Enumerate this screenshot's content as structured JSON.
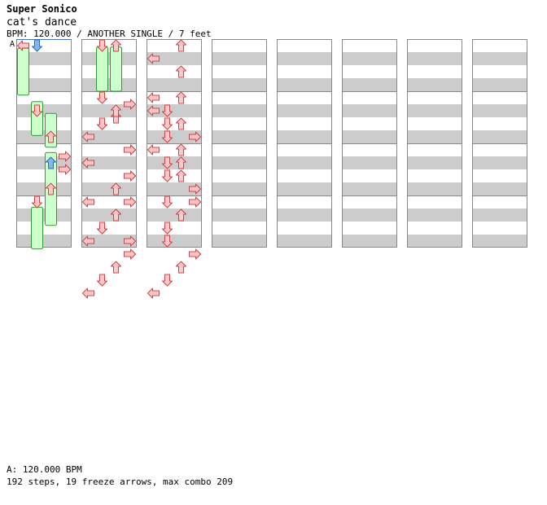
{
  "header": {
    "artist": "Super Sonico",
    "title": "cat's dance",
    "info": "BPM: 120.000 / ANOTHER SINGLE / 7 feet"
  },
  "section_marker": "A",
  "footer": {
    "bpm_line": "A: 120.000 BPM",
    "stats_line": "192 steps, 19 freeze arrows, max combo 209"
  },
  "colors": {
    "stripe": "#cccccc",
    "border": "#888888",
    "arrow_red_fill": "#ffc8c8",
    "arrow_red_stroke": "#cc4444",
    "arrow_blue_fill": "#7fb8f0",
    "arrow_blue_stroke": "#3366aa",
    "arrow_pink_fill": "#ff99ff",
    "arrow_pink_stroke": "#aa44aa",
    "freeze_fill": "#ccffcc",
    "freeze_stroke": "#339933"
  },
  "chart_data": {
    "type": "step-chart",
    "panels": 8,
    "measures_per_panel": 4,
    "beats_per_measure": 4,
    "lanes": [
      "left",
      "down",
      "up",
      "right"
    ],
    "notes": [
      {
        "m": 0,
        "b": 0,
        "lane": "left",
        "c": "red"
      },
      {
        "m": 0,
        "b": 0,
        "lane": "down",
        "c": "blue"
      },
      {
        "m": 1,
        "b": 1,
        "lane": "down",
        "c": "red"
      },
      {
        "m": 1,
        "b": 3,
        "lane": "up",
        "c": "red"
      },
      {
        "m": 1,
        "b": 4.5,
        "lane": "right",
        "c": "red"
      },
      {
        "m": 1,
        "b": 5,
        "lane": "up",
        "c": "blue"
      },
      {
        "m": 1,
        "b": 5.5,
        "lane": "right",
        "c": "red"
      },
      {
        "m": 1,
        "b": 7,
        "lane": "up",
        "c": "red"
      },
      {
        "m": 1,
        "b": 8,
        "lane": "down",
        "c": "red"
      },
      {
        "m": 4,
        "b": 0,
        "lane": "down",
        "c": "red"
      },
      {
        "m": 4,
        "b": 0,
        "lane": "up",
        "c": "red"
      },
      {
        "m": 4,
        "b": 4.5,
        "lane": "right",
        "c": "red"
      },
      {
        "m": 4,
        "b": 5.5,
        "lane": "up",
        "c": "red"
      },
      {
        "m": 4,
        "b": 6,
        "lane": "down",
        "c": "red"
      },
      {
        "m": 4,
        "b": 7,
        "lane": "left",
        "c": "red"
      },
      {
        "m": 4,
        "b": 8,
        "lane": "right",
        "c": "red"
      },
      {
        "m": 4,
        "b": 9,
        "lane": "left",
        "c": "red"
      },
      {
        "m": 4,
        "b": 10,
        "lane": "right",
        "c": "red"
      },
      {
        "m": 4,
        "b": 12,
        "lane": "left",
        "c": "red"
      },
      {
        "m": 4,
        "b": 13,
        "lane": "up",
        "c": "red"
      },
      {
        "m": 4,
        "b": 14,
        "lane": "down",
        "c": "red"
      },
      {
        "m": 4,
        "b": 15,
        "lane": "right",
        "c": "red"
      },
      {
        "m": 5,
        "b": 0,
        "lane": "down",
        "c": "red"
      },
      {
        "m": 5,
        "b": 1,
        "lane": "up",
        "c": "red"
      },
      {
        "m": 5,
        "b": 2,
        "lane": "down",
        "c": "red"
      },
      {
        "m": 5,
        "b": 4,
        "lane": "right",
        "c": "red"
      },
      {
        "m": 5,
        "b": 5,
        "lane": "left",
        "c": "red"
      },
      {
        "m": 5,
        "b": 6,
        "lane": "right",
        "c": "red"
      },
      {
        "m": 5,
        "b": 7,
        "lane": "up",
        "c": "red"
      },
      {
        "m": 5,
        "b": 8,
        "lane": "right",
        "c": "red"
      },
      {
        "m": 5,
        "b": 9,
        "lane": "up",
        "c": "red"
      },
      {
        "m": 5,
        "b": 10,
        "lane": "down",
        "c": "red"
      },
      {
        "m": 5,
        "b": 11,
        "lane": "left",
        "c": "red"
      },
      {
        "m": 5,
        "b": 12,
        "lane": "right",
        "c": "red"
      },
      {
        "m": 5,
        "b": 13,
        "lane": "up",
        "c": "red"
      },
      {
        "m": 5,
        "b": 14,
        "lane": "down",
        "c": "red"
      },
      {
        "m": 5,
        "b": 15,
        "lane": "left",
        "c": "red"
      },
      {
        "m": 8,
        "b": 0,
        "lane": "up",
        "c": "red"
      },
      {
        "m": 8,
        "b": 1,
        "lane": "left",
        "c": "red"
      },
      {
        "m": 8,
        "b": 2,
        "lane": "up",
        "c": "red"
      },
      {
        "m": 8,
        "b": 4,
        "lane": "left",
        "c": "red"
      },
      {
        "m": 8,
        "b": 5,
        "lane": "down",
        "c": "red"
      },
      {
        "m": 8,
        "b": 6,
        "lane": "up",
        "c": "red"
      },
      {
        "m": 8,
        "b": 7,
        "lane": "down",
        "c": "red"
      },
      {
        "m": 8,
        "b": 8,
        "lane": "up",
        "c": "red"
      },
      {
        "m": 8,
        "b": 9,
        "lane": "up",
        "c": "red"
      },
      {
        "m": 8,
        "b": 10,
        "lane": "down",
        "c": "red"
      },
      {
        "m": 8,
        "b": 12,
        "lane": "right",
        "c": "red"
      },
      {
        "m": 8,
        "b": 13,
        "lane": "up",
        "c": "red"
      },
      {
        "m": 8,
        "b": 14,
        "lane": "down",
        "c": "red"
      },
      {
        "m": 8,
        "b": 15,
        "lane": "down",
        "c": "red"
      },
      {
        "m": 9,
        "b": 0,
        "lane": "up",
        "c": "red"
      },
      {
        "m": 9,
        "b": 1,
        "lane": "left",
        "c": "red"
      },
      {
        "m": 9,
        "b": 2,
        "lane": "down",
        "c": "red"
      },
      {
        "m": 9,
        "b": 3,
        "lane": "right",
        "c": "red"
      },
      {
        "m": 9,
        "b": 4,
        "lane": "left",
        "c": "red"
      },
      {
        "m": 9,
        "b": 5,
        "lane": "down",
        "c": "red"
      },
      {
        "m": 9,
        "b": 6,
        "lane": "up",
        "c": "red"
      },
      {
        "m": 9,
        "b": 7,
        "lane": "right",
        "c": "red"
      },
      {
        "m": 9,
        "b": 8,
        "lane": "down",
        "c": "red"
      },
      {
        "m": 9,
        "b": 9,
        "lane": "up",
        "c": "red"
      },
      {
        "m": 9,
        "b": 10,
        "lane": "down",
        "c": "red"
      },
      {
        "m": 9,
        "b": 12,
        "lane": "right",
        "c": "red"
      },
      {
        "m": 9,
        "b": 13,
        "lane": "up",
        "c": "red"
      },
      {
        "m": 9,
        "b": 14,
        "lane": "down",
        "c": "red"
      },
      {
        "m": 9,
        "b": 15,
        "lane": "left",
        "c": "red"
      }
    ],
    "freezes": [
      {
        "m": 0,
        "b": 0.2,
        "len": 3.6,
        "lane": "left"
      },
      {
        "m": 1,
        "b": 0.3,
        "len": 2.6,
        "lane": "down"
      },
      {
        "m": 1,
        "b": 1.2,
        "len": 2.6,
        "lane": "up"
      },
      {
        "m": 1,
        "b": 4.2,
        "len": 5.6,
        "lane": "up"
      },
      {
        "m": 1,
        "b": 8.4,
        "len": 3.2,
        "lane": "down"
      },
      {
        "m": 4,
        "b": 0.1,
        "len": 3.4,
        "lane": "down"
      },
      {
        "m": 4,
        "b": 0.1,
        "len": 3.4,
        "lane": "up"
      }
    ]
  }
}
